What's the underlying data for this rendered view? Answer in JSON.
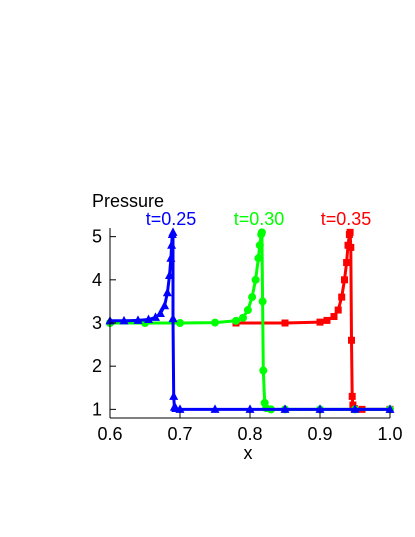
{
  "chart_data": {
    "type": "line",
    "title": "Pressure",
    "xlabel": "x",
    "ylabel": "",
    "xlim": [
      0.6,
      1.0
    ],
    "ylim": [
      0.8,
      5.2
    ],
    "x_ticks": [
      "0.6",
      "0.7",
      "0.8",
      "0.9",
      "1.0"
    ],
    "y_ticks": [
      "1",
      "2",
      "3",
      "4",
      "5"
    ],
    "grid": false,
    "series": [
      {
        "name": "t=0.25",
        "color": "#0000ff",
        "marker": "triangle",
        "x": [
          0.6,
          0.62,
          0.64,
          0.655,
          0.665,
          0.672,
          0.678,
          0.682,
          0.685,
          0.687,
          0.688,
          0.689,
          0.69,
          0.69,
          0.691,
          0.692,
          0.694,
          0.7,
          0.75,
          0.8,
          0.85,
          0.9,
          0.95,
          1.0
        ],
        "y": [
          3.05,
          3.05,
          3.06,
          3.08,
          3.13,
          3.22,
          3.4,
          3.7,
          4.1,
          4.5,
          4.8,
          5.05,
          5.1,
          3.1,
          1.3,
          1.05,
          1.02,
          1.0,
          1.0,
          1.0,
          1.0,
          1.0,
          1.0,
          1.0
        ]
      },
      {
        "name": "t=0.30",
        "color": "#00ff00",
        "marker": "circle",
        "x": [
          0.6,
          0.65,
          0.7,
          0.75,
          0.78,
          0.79,
          0.797,
          0.803,
          0.808,
          0.812,
          0.814,
          0.816,
          0.817,
          0.818,
          0.819,
          0.821,
          0.823,
          0.83,
          0.85,
          0.9,
          0.95,
          1.0
        ],
        "y": [
          3.0,
          3.0,
          3.0,
          3.01,
          3.05,
          3.12,
          3.3,
          3.6,
          4.0,
          4.5,
          4.8,
          5.05,
          5.1,
          3.5,
          1.9,
          1.15,
          1.03,
          1.0,
          1.0,
          1.0,
          1.0,
          1.0
        ]
      },
      {
        "name": "t=0.35",
        "color": "#ff0000",
        "marker": "square",
        "x": [
          0.78,
          0.85,
          0.9,
          0.91,
          0.92,
          0.926,
          0.931,
          0.935,
          0.938,
          0.94,
          0.942,
          0.943,
          0.944,
          0.945,
          0.946,
          0.947,
          0.949,
          0.96,
          1.0
        ],
        "y": [
          3.0,
          3.0,
          3.02,
          3.06,
          3.15,
          3.3,
          3.6,
          4.0,
          4.4,
          4.8,
          5.05,
          5.1,
          4.75,
          2.6,
          1.3,
          1.1,
          1.02,
          1.0,
          1.0
        ]
      }
    ]
  }
}
